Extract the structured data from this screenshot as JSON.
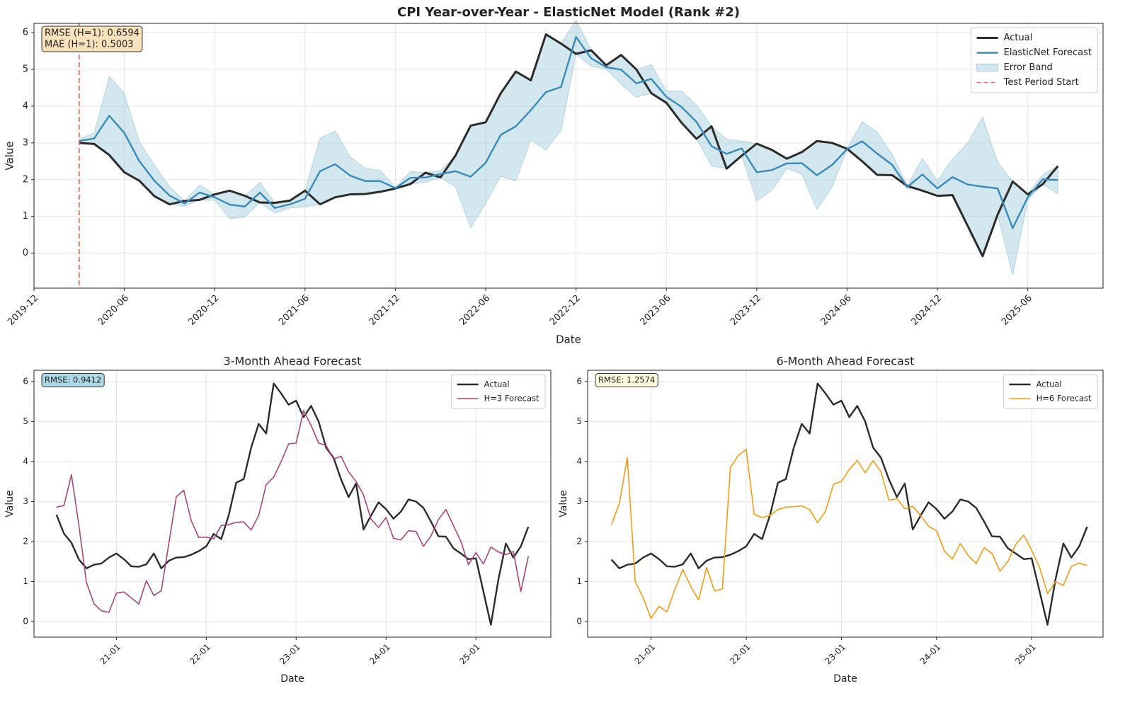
{
  "chart_data": [
    {
      "type": "line",
      "title": "CPI Year-over-Year - ElasticNet Model (Rank #2)",
      "xlabel": "Date",
      "ylabel": "Value",
      "x": [
        "2020-03",
        "2020-04",
        "2020-05",
        "2020-06",
        "2020-07",
        "2020-08",
        "2020-09",
        "2020-10",
        "2020-11",
        "2020-12",
        "2021-01",
        "2021-02",
        "2021-03",
        "2021-04",
        "2021-05",
        "2021-06",
        "2021-07",
        "2021-08",
        "2021-09",
        "2021-10",
        "2021-11",
        "2021-12",
        "2022-01",
        "2022-02",
        "2022-03",
        "2022-04",
        "2022-05",
        "2022-06",
        "2022-07",
        "2022-08",
        "2022-09",
        "2022-10",
        "2022-11",
        "2022-12",
        "2023-01",
        "2023-02",
        "2023-03",
        "2023-04",
        "2023-05",
        "2023-06",
        "2023-07",
        "2023-08",
        "2023-09",
        "2023-10",
        "2023-11",
        "2023-12",
        "2024-01",
        "2024-02",
        "2024-03",
        "2024-04",
        "2024-05",
        "2024-06",
        "2024-07",
        "2024-08",
        "2024-09",
        "2024-10",
        "2024-11",
        "2024-12",
        "2025-01",
        "2025-02",
        "2025-03",
        "2025-04",
        "2025-05",
        "2025-06",
        "2025-07",
        "2025-08"
      ],
      "xlim": [
        "2019-12",
        "2025-11"
      ],
      "xticks": [
        "2019-12",
        "2020-06",
        "2020-12",
        "2021-06",
        "2021-12",
        "2022-06",
        "2022-12",
        "2023-06",
        "2023-12",
        "2024-06",
        "2024-12",
        "2025-06"
      ],
      "ylim": [
        -0.95,
        6.25
      ],
      "yticks": [
        0,
        1,
        2,
        3,
        4,
        5,
        6
      ],
      "grid": true,
      "legend": "upper right",
      "series": [
        {
          "name": "Actual",
          "color": "#2b2b2b",
          "width": 3,
          "values": [
            3.0,
            2.97,
            2.67,
            2.2,
            1.97,
            1.55,
            1.33,
            1.42,
            1.45,
            1.6,
            1.7,
            1.56,
            1.38,
            1.37,
            1.43,
            1.7,
            1.33,
            1.52,
            1.6,
            1.61,
            1.67,
            1.76,
            1.88,
            2.19,
            2.06,
            2.66,
            3.47,
            3.56,
            4.35,
            4.94,
            4.7,
            5.95,
            5.7,
            5.42,
            5.52,
            5.11,
            5.39,
            5.0,
            4.35,
            4.09,
            3.55,
            3.11,
            3.45,
            2.3,
            2.65,
            2.98,
            2.81,
            2.57,
            2.75,
            3.05,
            3.0,
            2.84,
            2.5,
            2.13,
            2.12,
            1.83,
            1.7,
            1.56,
            1.58,
            0.75,
            -0.08,
            1.05,
            1.95,
            1.6,
            1.88,
            2.37
          ]
        },
        {
          "name": "ElasticNet Forecast",
          "color": "#3a8ab5",
          "width": 2.4,
          "values": [
            3.05,
            3.12,
            3.74,
            3.27,
            2.5,
            1.97,
            1.57,
            1.35,
            1.65,
            1.52,
            1.32,
            1.27,
            1.65,
            1.23,
            1.33,
            1.48,
            2.23,
            2.42,
            2.11,
            1.96,
            1.96,
            1.77,
            2.05,
            2.06,
            2.15,
            2.23,
            2.08,
            2.46,
            3.22,
            3.45,
            3.89,
            4.38,
            4.52,
            5.88,
            5.3,
            5.06,
            4.99,
            4.62,
            4.74,
            4.25,
            3.98,
            3.57,
            2.91,
            2.7,
            2.85,
            2.2,
            2.26,
            2.44,
            2.45,
            2.12,
            2.4,
            2.83,
            3.04,
            2.71,
            2.4,
            1.8,
            2.14,
            1.76,
            2.07,
            1.87,
            1.81,
            1.76,
            0.68,
            1.52,
            2.01,
            1.99
          ]
        },
        {
          "name": "Error Band",
          "color": "#a8cfe0",
          "errors": [
            0.05,
            0.15,
            1.07,
            1.07,
            0.53,
            0.42,
            0.24,
            0.07,
            0.2,
            0.08,
            0.38,
            0.29,
            0.27,
            0.14,
            0.1,
            0.22,
            0.9,
            0.9,
            0.51,
            0.35,
            0.29,
            0.01,
            0.17,
            0.13,
            0.09,
            0.43,
            1.39,
            1.1,
            1.13,
            1.49,
            0.81,
            1.57,
            1.18,
            0.46,
            0.22,
            0.05,
            0.4,
            0.38,
            0.39,
            0.16,
            0.43,
            0.46,
            0.54,
            0.4,
            0.2,
            0.78,
            0.55,
            0.13,
            0.3,
            0.93,
            0.6,
            0.01,
            0.54,
            0.58,
            0.28,
            0.03,
            0.44,
            0.2,
            0.49,
            1.12,
            1.89,
            0.71,
            1.27,
            0.08,
            0.13,
            0.38
          ]
        }
      ],
      "vline": {
        "name": "Test Period Start",
        "x": "2020-03",
        "color": "#f26a5a"
      },
      "annotation": {
        "lines": [
          "RMSE (H=1): 0.6594",
          "MAE (H=1): 0.5003"
        ],
        "color": "#f8e2bc"
      }
    },
    {
      "type": "line",
      "title": "3-Month Ahead Forecast",
      "xlabel": "Date",
      "ylabel": "Value",
      "x": [
        "20-05",
        "20-06",
        "20-07",
        "20-08",
        "20-09",
        "20-10",
        "20-11",
        "20-12",
        "21-01",
        "21-02",
        "21-03",
        "21-04",
        "21-05",
        "21-06",
        "21-07",
        "21-08",
        "21-09",
        "21-10",
        "21-11",
        "21-12",
        "22-01",
        "22-02",
        "22-03",
        "22-04",
        "22-05",
        "22-06",
        "22-07",
        "22-08",
        "22-09",
        "22-10",
        "22-11",
        "22-12",
        "23-01",
        "23-02",
        "23-03",
        "23-04",
        "23-05",
        "23-06",
        "23-07",
        "23-08",
        "23-09",
        "23-10",
        "23-11",
        "23-12",
        "24-01",
        "24-02",
        "24-03",
        "24-04",
        "24-05",
        "24-06",
        "24-07",
        "24-08",
        "24-09",
        "24-10",
        "24-11",
        "24-12",
        "25-01",
        "25-02",
        "25-03",
        "25-04",
        "25-05",
        "25-06",
        "25-07",
        "25-08"
      ],
      "xlim": [
        "20-02",
        "25-11"
      ],
      "xticks": [
        "21-01",
        "22-01",
        "23-01",
        "24-01",
        "25-01"
      ],
      "ylim": [
        -0.39,
        6.28
      ],
      "yticks": [
        0,
        1,
        2,
        3,
        4,
        5,
        6
      ],
      "grid": true,
      "legend": "upper right",
      "series": [
        {
          "name": "Actual",
          "color": "#2b2b2b",
          "width": 2.4,
          "values": [
            2.67,
            2.2,
            1.97,
            1.55,
            1.33,
            1.42,
            1.45,
            1.6,
            1.7,
            1.56,
            1.38,
            1.37,
            1.43,
            1.7,
            1.33,
            1.52,
            1.6,
            1.61,
            1.67,
            1.76,
            1.88,
            2.19,
            2.06,
            2.66,
            3.47,
            3.56,
            4.35,
            4.94,
            4.7,
            5.95,
            5.7,
            5.42,
            5.52,
            5.11,
            5.39,
            5.0,
            4.35,
            4.09,
            3.55,
            3.11,
            3.45,
            2.3,
            2.65,
            2.98,
            2.81,
            2.57,
            2.75,
            3.05,
            3.0,
            2.84,
            2.5,
            2.13,
            2.12,
            1.83,
            1.7,
            1.56,
            1.58,
            0.75,
            -0.08,
            1.05,
            1.95,
            1.6,
            1.88,
            2.37
          ]
        },
        {
          "name": "H=3 Forecast",
          "color": "#a8457a",
          "width": 1.6,
          "values": [
            2.86,
            2.9,
            3.67,
            2.4,
            0.98,
            0.45,
            0.27,
            0.23,
            0.71,
            0.74,
            0.59,
            0.44,
            1.02,
            0.65,
            0.77,
            1.95,
            3.12,
            3.28,
            2.52,
            2.1,
            2.11,
            2.07,
            2.4,
            2.42,
            2.48,
            2.49,
            2.29,
            2.65,
            3.42,
            3.61,
            4.0,
            4.44,
            4.46,
            5.27,
            4.9,
            4.46,
            4.4,
            4.06,
            4.13,
            3.74,
            3.5,
            3.16,
            2.56,
            2.35,
            2.6,
            2.08,
            2.04,
            2.27,
            2.25,
            1.88,
            2.14,
            2.55,
            2.8,
            2.4,
            2.0,
            1.42,
            1.72,
            1.44,
            1.86,
            1.74,
            1.67,
            1.75,
            0.75,
            1.63
          ]
        }
      ],
      "annotation": {
        "lines": [
          "RMSE: 0.9412"
        ],
        "color": "#add8e6"
      }
    },
    {
      "type": "line",
      "title": "6-Month Ahead Forecast",
      "xlabel": "Date",
      "ylabel": "Value",
      "x": [
        "20-08",
        "20-09",
        "20-10",
        "20-11",
        "20-12",
        "21-01",
        "21-02",
        "21-03",
        "21-04",
        "21-05",
        "21-06",
        "21-07",
        "21-08",
        "21-09",
        "21-10",
        "21-11",
        "21-12",
        "22-01",
        "22-02",
        "22-03",
        "22-04",
        "22-05",
        "22-06",
        "22-07",
        "22-08",
        "22-09",
        "22-10",
        "22-11",
        "22-12",
        "23-01",
        "23-02",
        "23-03",
        "23-04",
        "23-05",
        "23-06",
        "23-07",
        "23-08",
        "23-09",
        "23-10",
        "23-11",
        "23-12",
        "24-01",
        "24-02",
        "24-03",
        "24-04",
        "24-05",
        "24-06",
        "24-07",
        "24-08",
        "24-09",
        "24-10",
        "24-11",
        "24-12",
        "25-01",
        "25-02",
        "25-03",
        "25-04",
        "25-05",
        "25-06",
        "25-07",
        "25-08"
      ],
      "xlim": [
        "20-05",
        "25-10"
      ],
      "xticks": [
        "21-01",
        "22-01",
        "23-01",
        "24-01",
        "25-01"
      ],
      "ylim": [
        -0.39,
        6.28
      ],
      "yticks": [
        0,
        1,
        2,
        3,
        4,
        5,
        6
      ],
      "grid": true,
      "legend": "upper right",
      "series": [
        {
          "name": "Actual",
          "color": "#2b2b2b",
          "width": 2.4,
          "values": [
            1.55,
            1.33,
            1.42,
            1.45,
            1.6,
            1.7,
            1.56,
            1.38,
            1.37,
            1.43,
            1.7,
            1.33,
            1.52,
            1.6,
            1.61,
            1.67,
            1.76,
            1.88,
            2.19,
            2.06,
            2.66,
            3.47,
            3.56,
            4.35,
            4.94,
            4.7,
            5.95,
            5.7,
            5.42,
            5.52,
            5.11,
            5.39,
            5.0,
            4.35,
            4.09,
            3.55,
            3.11,
            3.45,
            2.3,
            2.65,
            2.98,
            2.81,
            2.57,
            2.75,
            3.05,
            3.0,
            2.84,
            2.5,
            2.13,
            2.12,
            1.83,
            1.7,
            1.56,
            1.58,
            0.75,
            -0.08,
            1.05,
            1.95,
            1.6,
            1.88,
            2.37
          ]
        },
        {
          "name": "H=6 Forecast",
          "color": "#f39c12",
          "width": 1.6,
          "values": [
            2.42,
            2.95,
            4.1,
            1.0,
            0.6,
            0.08,
            0.38,
            0.24,
            0.8,
            1.3,
            0.88,
            0.54,
            1.35,
            0.76,
            0.82,
            3.85,
            4.15,
            4.3,
            2.68,
            2.6,
            2.65,
            2.8,
            2.86,
            2.87,
            2.89,
            2.8,
            2.47,
            2.76,
            3.43,
            3.5,
            3.8,
            4.03,
            3.72,
            4.02,
            3.74,
            3.03,
            3.07,
            2.82,
            2.88,
            2.65,
            2.38,
            2.27,
            1.76,
            1.56,
            1.95,
            1.65,
            1.45,
            1.85,
            1.7,
            1.26,
            1.5,
            1.93,
            2.16,
            1.78,
            1.35,
            0.7,
            1.0,
            0.9,
            1.38,
            1.46,
            1.4
          ]
        }
      ],
      "annotation": {
        "lines": [
          "RMSE: 1.2574"
        ],
        "color": "#ffffe0"
      }
    }
  ]
}
